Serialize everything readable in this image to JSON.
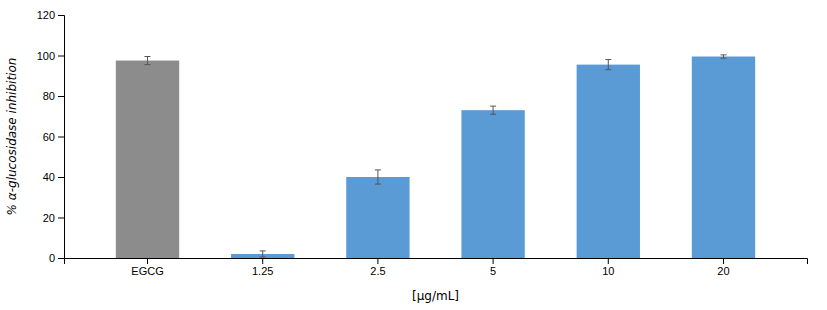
{
  "chart_data": {
    "type": "bar",
    "categories": [
      "EGCG",
      "1.25",
      "2.5",
      "5",
      "10",
      "20"
    ],
    "values": [
      97.5,
      2.0,
      40.0,
      73.0,
      95.5,
      99.5
    ],
    "errors": [
      2.0,
      1.5,
      3.5,
      2.0,
      2.5,
      0.8
    ],
    "colors": [
      "#8C8C8C",
      "#5B9BD5",
      "#5B9BD5",
      "#5B9BD5",
      "#5B9BD5",
      "#5B9BD5"
    ],
    "xlabel": "[µg/mL]",
    "ylabel": "% α-glucosidase inhibition",
    "ylim": [
      0,
      120
    ],
    "yticks": [
      0,
      20,
      40,
      60,
      80,
      100,
      120
    ],
    "grid": false
  }
}
